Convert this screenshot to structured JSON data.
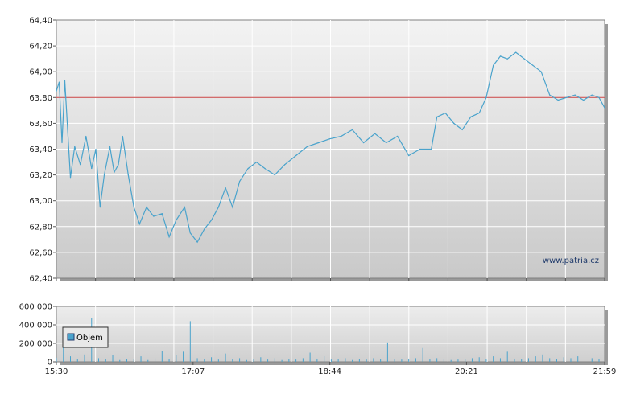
{
  "chart_data": [
    {
      "type": "line",
      "title": "",
      "ylim": [
        62.4,
        64.4
      ],
      "y_ticks": [
        "64,40",
        "64,20",
        "64,00",
        "63,80",
        "63,60",
        "63,40",
        "63,20",
        "63,00",
        "62,80",
        "62,60",
        "62,40"
      ],
      "reference_line": 63.8,
      "watermark": "www.patria.cz",
      "grid": true,
      "series": [
        {
          "color": "#4aa3cc",
          "points": [
            [
              "15:30",
              63.85
            ],
            [
              "15:32",
              63.92
            ],
            [
              "15:34",
              63.45
            ],
            [
              "15:36",
              63.93
            ],
            [
              "15:38",
              63.55
            ],
            [
              "15:40",
              63.18
            ],
            [
              "15:43",
              63.42
            ],
            [
              "15:47",
              63.28
            ],
            [
              "15:51",
              63.5
            ],
            [
              "15:55",
              63.25
            ],
            [
              "15:58",
              63.4
            ],
            [
              "16:01",
              62.95
            ],
            [
              "16:04",
              63.2
            ],
            [
              "16:08",
              63.42
            ],
            [
              "16:11",
              63.22
            ],
            [
              "16:14",
              63.28
            ],
            [
              "16:17",
              63.5
            ],
            [
              "16:21",
              63.2
            ],
            [
              "16:25",
              62.95
            ],
            [
              "16:29",
              62.82
            ],
            [
              "16:34",
              62.95
            ],
            [
              "16:39",
              62.88
            ],
            [
              "16:45",
              62.9
            ],
            [
              "16:50",
              62.72
            ],
            [
              "16:55",
              62.85
            ],
            [
              "17:01",
              62.95
            ],
            [
              "17:05",
              62.75
            ],
            [
              "17:10",
              62.68
            ],
            [
              "17:15",
              62.78
            ],
            [
              "17:20",
              62.85
            ],
            [
              "17:25",
              62.95
            ],
            [
              "17:30",
              63.1
            ],
            [
              "17:35",
              62.95
            ],
            [
              "17:40",
              63.15
            ],
            [
              "17:46",
              63.25
            ],
            [
              "17:52",
              63.3
            ],
            [
              "17:58",
              63.25
            ],
            [
              "18:05",
              63.2
            ],
            [
              "18:12",
              63.28
            ],
            [
              "18:20",
              63.35
            ],
            [
              "18:28",
              63.42
            ],
            [
              "18:36",
              63.45
            ],
            [
              "18:44",
              63.48
            ],
            [
              "18:52",
              63.5
            ],
            [
              "19:00",
              63.55
            ],
            [
              "19:08",
              63.45
            ],
            [
              "19:16",
              63.52
            ],
            [
              "19:24",
              63.45
            ],
            [
              "19:32",
              63.5
            ],
            [
              "19:40",
              63.35
            ],
            [
              "19:48",
              63.4
            ],
            [
              "19:56",
              63.4
            ],
            [
              "20:00",
              63.65
            ],
            [
              "20:06",
              63.68
            ],
            [
              "20:12",
              63.6
            ],
            [
              "20:18",
              63.55
            ],
            [
              "20:24",
              63.65
            ],
            [
              "20:30",
              63.68
            ],
            [
              "20:35",
              63.8
            ],
            [
              "20:40",
              64.05
            ],
            [
              "20:45",
              64.12
            ],
            [
              "20:50",
              64.1
            ],
            [
              "20:56",
              64.15
            ],
            [
              "21:02",
              64.1
            ],
            [
              "21:08",
              64.05
            ],
            [
              "21:14",
              64.0
            ],
            [
              "21:20",
              63.82
            ],
            [
              "21:26",
              63.78
            ],
            [
              "21:32",
              63.8
            ],
            [
              "21:38",
              63.82
            ],
            [
              "21:44",
              63.78
            ],
            [
              "21:50",
              63.82
            ],
            [
              "21:55",
              63.8
            ],
            [
              "21:59",
              63.72
            ]
          ]
        }
      ]
    },
    {
      "type": "bar",
      "title": "",
      "ylim": [
        0,
        600000
      ],
      "y_ticks": [
        "600 000",
        "400 000",
        "200 000",
        "0"
      ],
      "x_ticks": [
        "15:30",
        "17:07",
        "18:44",
        "20:21",
        "21:59"
      ],
      "legend": {
        "position": "top-left",
        "label": "Objem",
        "color": "#4aa3cc"
      },
      "grid": true,
      "series": [
        {
          "name": "Objem",
          "color": "#4aa3cc",
          "values": [
            [
              "15:30",
              45000
            ],
            [
              "15:35",
              160000
            ],
            [
              "15:40",
              60000
            ],
            [
              "15:45",
              30000
            ],
            [
              "15:50",
              80000
            ],
            [
              "15:55",
              470000
            ],
            [
              "16:00",
              40000
            ],
            [
              "16:05",
              30000
            ],
            [
              "16:10",
              70000
            ],
            [
              "16:15",
              20000
            ],
            [
              "16:20",
              30000
            ],
            [
              "16:25",
              25000
            ],
            [
              "16:30",
              60000
            ],
            [
              "16:35",
              20000
            ],
            [
              "16:40",
              40000
            ],
            [
              "16:45",
              120000
            ],
            [
              "16:50",
              30000
            ],
            [
              "16:55",
              70000
            ],
            [
              "17:00",
              110000
            ],
            [
              "17:05",
              440000
            ],
            [
              "17:10",
              40000
            ],
            [
              "17:15",
              30000
            ],
            [
              "17:20",
              50000
            ],
            [
              "17:25",
              25000
            ],
            [
              "17:30",
              90000
            ],
            [
              "17:35",
              30000
            ],
            [
              "17:40",
              40000
            ],
            [
              "17:45",
              20000
            ],
            [
              "17:50",
              30000
            ],
            [
              "17:55",
              50000
            ],
            [
              "18:00",
              25000
            ],
            [
              "18:05",
              40000
            ],
            [
              "18:10",
              20000
            ],
            [
              "18:15",
              30000
            ],
            [
              "18:20",
              25000
            ],
            [
              "18:25",
              40000
            ],
            [
              "18:30",
              100000
            ],
            [
              "18:35",
              35000
            ],
            [
              "18:40",
              60000
            ],
            [
              "18:45",
              25000
            ],
            [
              "18:50",
              30000
            ],
            [
              "18:55",
              40000
            ],
            [
              "19:00",
              20000
            ],
            [
              "19:05",
              30000
            ],
            [
              "19:10",
              25000
            ],
            [
              "19:15",
              40000
            ],
            [
              "19:20",
              30000
            ],
            [
              "19:25",
              210000
            ],
            [
              "19:30",
              30000
            ],
            [
              "19:35",
              25000
            ],
            [
              "19:40",
              35000
            ],
            [
              "19:45",
              40000
            ],
            [
              "19:50",
              150000
            ],
            [
              "19:55",
              30000
            ],
            [
              "20:00",
              40000
            ],
            [
              "20:05",
              30000
            ],
            [
              "20:10",
              20000
            ],
            [
              "20:15",
              25000
            ],
            [
              "20:20",
              30000
            ],
            [
              "20:25",
              40000
            ],
            [
              "20:30",
              50000
            ],
            [
              "20:35",
              30000
            ],
            [
              "20:40",
              60000
            ],
            [
              "20:45",
              40000
            ],
            [
              "20:50",
              110000
            ],
            [
              "20:55",
              35000
            ],
            [
              "21:00",
              30000
            ],
            [
              "21:05",
              40000
            ],
            [
              "21:10",
              60000
            ],
            [
              "21:15",
              80000
            ],
            [
              "21:20",
              40000
            ],
            [
              "21:25",
              30000
            ],
            [
              "21:30",
              50000
            ],
            [
              "21:35",
              40000
            ],
            [
              "21:40",
              60000
            ],
            [
              "21:45",
              30000
            ],
            [
              "21:50",
              40000
            ],
            [
              "21:55",
              30000
            ]
          ]
        }
      ]
    }
  ]
}
